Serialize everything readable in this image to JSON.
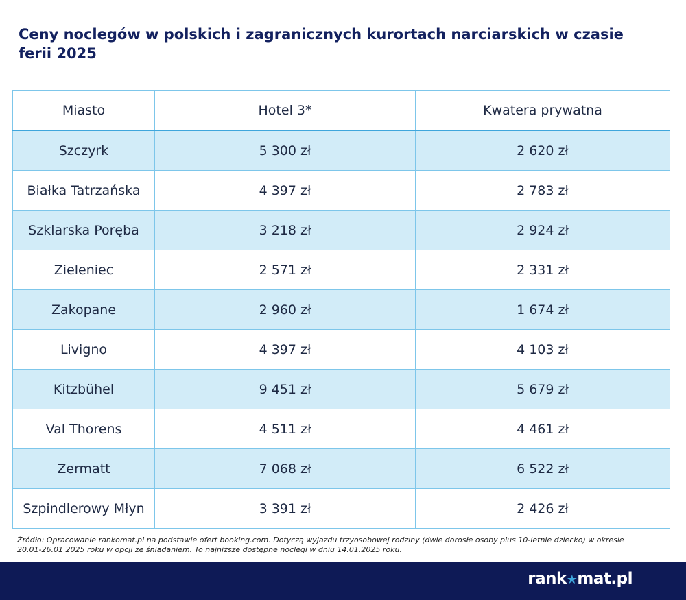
{
  "title": "Ceny noclegów w polskich i zagranicznych kurortach narciarskich w czasie ferii 2025",
  "chart_data": {
    "type": "table",
    "columns": [
      "Miasto",
      "Hotel 3*",
      "Kwatera prywatna"
    ],
    "rows": [
      [
        "Szczyrk",
        "5 300 zł",
        "2 620 zł"
      ],
      [
        "Białka Tatrzańska",
        "4 397 zł",
        "2 783 zł"
      ],
      [
        "Szklarska Poręba",
        "3 218 zł",
        "2 924 zł"
      ],
      [
        "Zieleniec",
        "2 571 zł",
        "2 331 zł"
      ],
      [
        "Zakopane",
        "2 960 zł",
        "1 674 zł"
      ],
      [
        "Livigno",
        "4 397 zł",
        "4 103 zł"
      ],
      [
        "Kitzbühel",
        "9 451 zł",
        "5 679 zł"
      ],
      [
        "Val Thorens",
        "4 511 zł",
        "4 461 zł"
      ],
      [
        "Zermatt",
        "7 068 zł",
        "6 522 zł"
      ],
      [
        "Szpindlerowy Młyn",
        "3 391 zł",
        "2 426 zł"
      ]
    ]
  },
  "source_note": "Źródło: Opracowanie rankomat.pl na podstawie ofert booking.com. Dotyczą wyjazdu trzyosobowej rodziny (dwie dorosłe osoby plus 10-letnie dziecko) w okresie 20.01-26.01 2025 roku w opcji ze śniadaniem. To najniższe dostępne noclegi w dniu 14.01.2025 roku.",
  "footer": {
    "logo_left": "rank",
    "logo_star": "★",
    "logo_right": "mat.pl",
    "background_color": "#0e1a56"
  }
}
